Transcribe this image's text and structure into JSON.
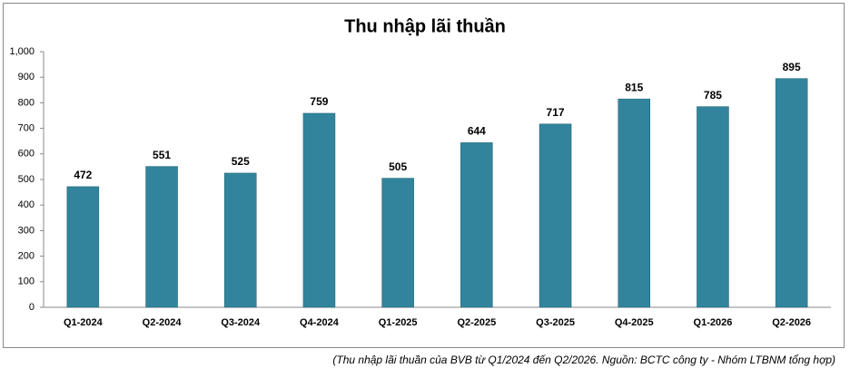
{
  "chart_data": {
    "type": "bar",
    "title": "Thu nhập lãi thuần",
    "categories": [
      "Q1-2024",
      "Q2-2024",
      "Q3-2024",
      "Q4-2024",
      "Q1-2025",
      "Q2-2025",
      "Q3-2025",
      "Q4-2025",
      "Q1-2026",
      "Q2-2026"
    ],
    "values": [
      472,
      551,
      525,
      759,
      505,
      644,
      717,
      815,
      785,
      895
    ],
    "color": "#31849b",
    "ylim": [
      0,
      1000
    ],
    "yticks": [
      0,
      100,
      200,
      300,
      400,
      500,
      600,
      700,
      800,
      900,
      {
        "value": 1000,
        "label": "1,000"
      }
    ],
    "grid": false,
    "caption": "(Thu nhập lãi thuần của BVB từ Q1/2024 đến Q2/2026. Nguồn: BCTC công ty - Nhóm LTBNM tổng hợp)"
  }
}
